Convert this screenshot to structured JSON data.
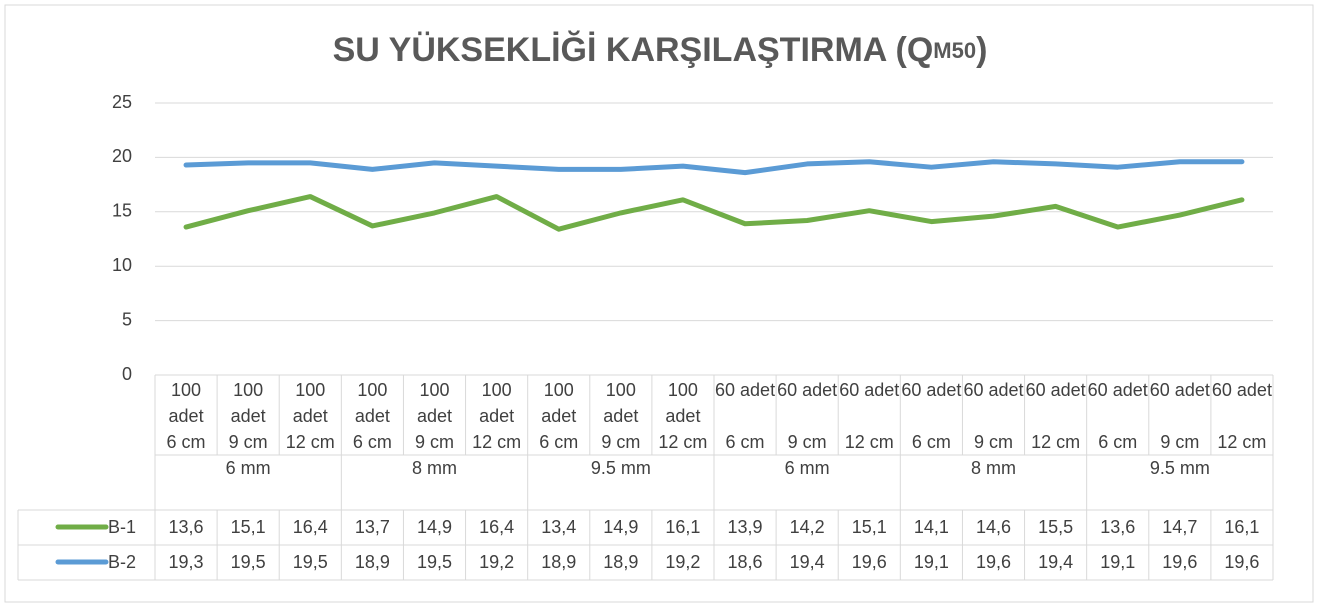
{
  "chart_data": {
    "type": "line",
    "title": [
      "SU YÜKSEKLİĞİ KARŞILAŞTIRMA (Q",
      "M50",
      ")"
    ],
    "categories": [
      "100 adet",
      "100 adet",
      "100 adet",
      "100 adet",
      "100 adet",
      "100 adet",
      "100 adet",
      "100 adet",
      "100 adet",
      "60 adet",
      "60 adet",
      "60 adet",
      "60 adet",
      "60 adet",
      "60 adet",
      "60 adet",
      "60 adet",
      "60 adet"
    ],
    "sizes": [
      "6 cm",
      "9 cm",
      "12 cm",
      "6 cm",
      "9 cm",
      "12 cm",
      "6 cm",
      "9 cm",
      "12 cm",
      "6 cm",
      "9 cm",
      "12 cm",
      "6 cm",
      "9 cm",
      "12 cm",
      "6 cm",
      "9 cm",
      "12 cm"
    ],
    "groups": [
      "6 mm",
      "8 mm",
      "9.5 mm",
      "6 mm",
      "8 mm",
      "9.5 mm"
    ],
    "series": [
      {
        "name": "B-1",
        "color": "#70ad47",
        "values": [
          13.6,
          15.1,
          16.4,
          13.7,
          14.9,
          16.4,
          13.4,
          14.9,
          16.1,
          13.9,
          14.2,
          15.1,
          14.1,
          14.6,
          15.5,
          13.6,
          14.7,
          16.1
        ],
        "value_labels": [
          "13,6",
          "15,1",
          "16,4",
          "13,7",
          "14,9",
          "16,4",
          "13,4",
          "14,9",
          "16,1",
          "13,9",
          "14,2",
          "15,1",
          "14,1",
          "14,6",
          "15,5",
          "13,6",
          "14,7",
          "16,1"
        ]
      },
      {
        "name": "B-2",
        "color": "#5b9bd5",
        "values": [
          19.3,
          19.5,
          19.5,
          18.9,
          19.5,
          19.2,
          18.9,
          18.9,
          19.2,
          18.6,
          19.4,
          19.6,
          19.1,
          19.6,
          19.4,
          19.1,
          19.6,
          19.6
        ],
        "value_labels": [
          "19,3",
          "19,5",
          "19,5",
          "18,9",
          "19,5",
          "19,2",
          "18,9",
          "18,9",
          "19,2",
          "18,6",
          "19,4",
          "19,6",
          "19,1",
          "19,6",
          "19,4",
          "19,1",
          "19,6",
          "19,6"
        ]
      }
    ],
    "ylim": [
      0,
      25
    ],
    "yticks": [
      0,
      5,
      10,
      15,
      20,
      25
    ],
    "grid": true
  }
}
